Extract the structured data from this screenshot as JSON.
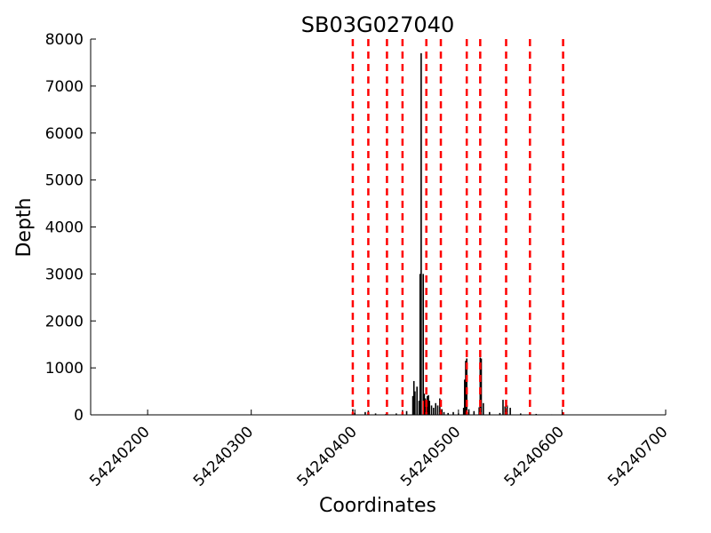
{
  "chart_data": {
    "type": "line",
    "title": "SB03G027040",
    "xlabel": "Coordinates",
    "ylabel": "Depth",
    "xlim": [
      54240145,
      54240700
    ],
    "ylim": [
      0,
      8000
    ],
    "x_ticks": [
      54240200,
      54240300,
      54240400,
      54240500,
      54240600,
      54240700
    ],
    "y_ticks": [
      0,
      1000,
      2000,
      3000,
      4000,
      5000,
      6000,
      7000,
      8000
    ],
    "grid": false,
    "vertical_lines": {
      "color": "#ff0000",
      "style": "dashed",
      "x": [
        54240398,
        54240413,
        54240431,
        54240446,
        54240469,
        54240483,
        54240508,
        54240521,
        54240546,
        54240569,
        54240601
      ]
    },
    "series": [
      {
        "color": "#000000",
        "x": [
          54240398,
          54240400,
          54240410,
          54240413,
          54240420,
          54240430,
          54240440,
          54240446,
          54240450,
          54240456,
          54240457,
          54240458,
          54240460,
          54240462,
          54240463,
          54240464,
          54240466,
          54240467,
          54240468,
          54240469,
          54240470,
          54240471,
          54240472,
          54240474,
          54240476,
          54240478,
          54240480,
          54240482,
          54240484,
          54240486,
          54240490,
          54240495,
          54240500,
          54240505,
          54240506,
          54240507,
          54240508,
          54240510,
          54240515,
          54240520,
          54240521,
          54240522,
          54240524,
          54240530,
          54240540,
          54240543,
          54240545,
          54240547,
          54240550,
          54240560,
          54240575,
          54240590,
          54240601
        ],
        "y": [
          120,
          40,
          60,
          90,
          30,
          20,
          30,
          100,
          80,
          400,
          720,
          500,
          600,
          300,
          3000,
          7700,
          3000,
          450,
          350,
          300,
          400,
          420,
          300,
          200,
          150,
          250,
          200,
          350,
          120,
          60,
          40,
          60,
          30,
          150,
          750,
          1150,
          1200,
          120,
          80,
          160,
          1220,
          1200,
          250,
          60,
          40,
          320,
          180,
          200,
          150,
          30,
          20,
          10,
          10
        ]
      },
      {
        "color": "#ff0000",
        "x": [
          54240398,
          54240413,
          54240446,
          54240466,
          54240469,
          54240483,
          54240508,
          54240521,
          54240546
        ],
        "y": [
          80,
          60,
          80,
          300,
          250,
          120,
          100,
          150,
          140
        ]
      }
    ]
  }
}
